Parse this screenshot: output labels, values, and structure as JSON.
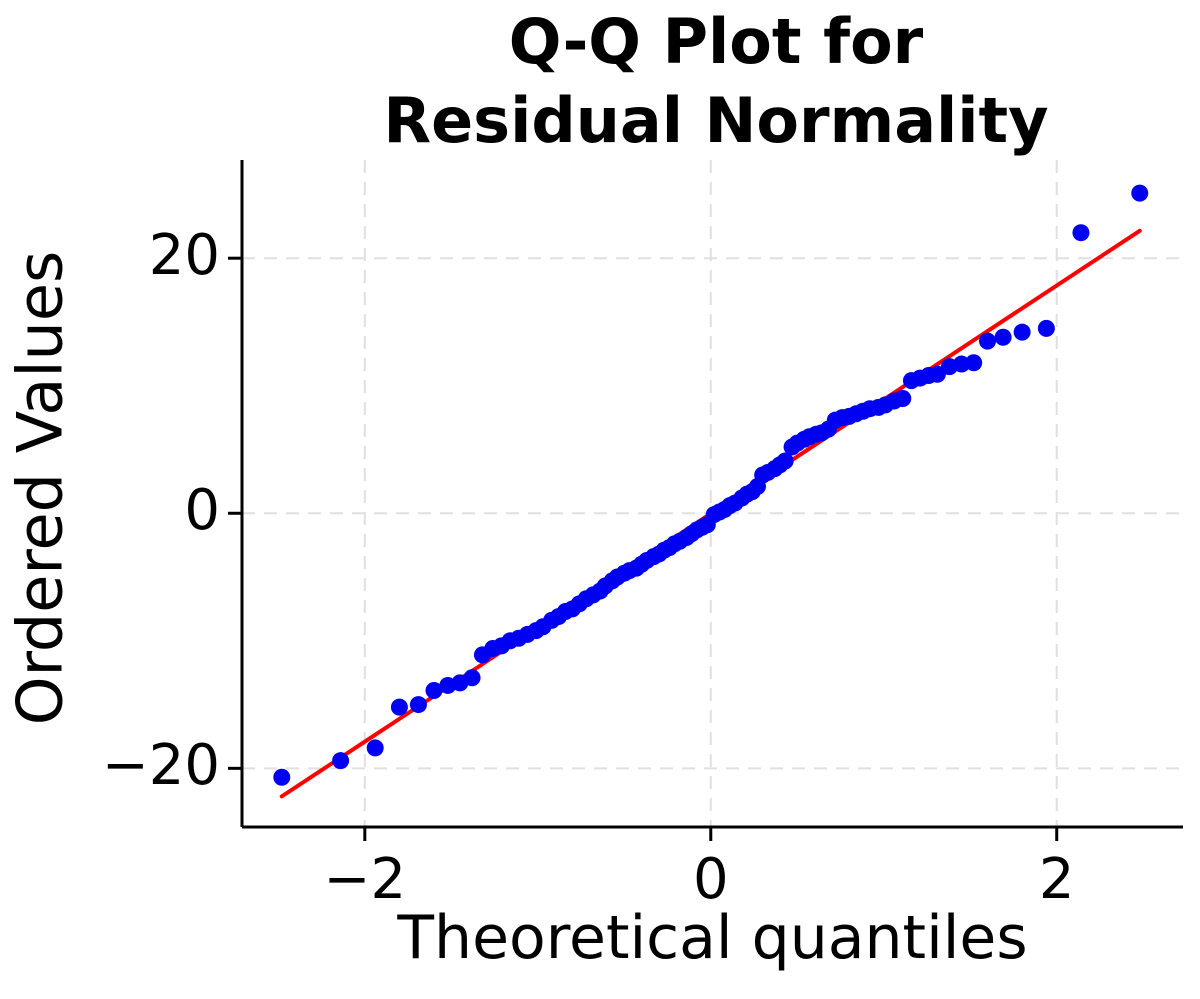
{
  "title": {
    "line1": "Q-Q Plot for",
    "line2": "Residual Normality"
  },
  "colors": {
    "point": "#0000f2",
    "fit_line": "#ff0000",
    "grid": "#e0e0e0",
    "spine": "#000000",
    "text": "#000000",
    "background": "#ffffff"
  },
  "chart_data": {
    "type": "scatter",
    "title": "Q-Q Plot for Residual Normality",
    "xlabel": "Theoretical quantiles",
    "ylabel": "Ordered Values",
    "xlim": [
      -2.71,
      2.73
    ],
    "ylim": [
      -24.6,
      27.7
    ],
    "grid": "dashed light-gray gridlines at each labeled tick; only left and bottom spines drawn",
    "legend": "none",
    "xticks": [
      {
        "value": -2,
        "label": "−2"
      },
      {
        "value": 0,
        "label": "0"
      },
      {
        "value": 2,
        "label": "2"
      }
    ],
    "yticks": [
      {
        "value": 20,
        "label": "20"
      },
      {
        "value": 0,
        "label": "0"
      },
      {
        "value": -20,
        "label": "−20"
      }
    ],
    "series": [
      {
        "name": "sample-quantiles",
        "type": "scatter",
        "marker": "filled-circle",
        "points": [
          [
            -2.48,
            -20.7
          ],
          [
            -2.14,
            -19.4
          ],
          [
            -1.94,
            -18.4
          ],
          [
            -1.8,
            -15.2
          ],
          [
            -1.69,
            -15.0
          ],
          [
            -1.6,
            -13.9
          ],
          [
            -1.52,
            -13.5
          ],
          [
            -1.45,
            -13.3
          ],
          [
            -1.38,
            -12.9
          ],
          [
            -1.32,
            -11.1
          ],
          [
            -1.26,
            -10.6
          ],
          [
            -1.21,
            -10.4
          ],
          [
            -1.16,
            -10.0
          ],
          [
            -1.11,
            -9.8
          ],
          [
            -1.06,
            -9.5
          ],
          [
            -1.01,
            -9.2
          ],
          [
            -0.97,
            -8.9
          ],
          [
            -0.92,
            -8.4
          ],
          [
            -0.88,
            -8.1
          ],
          [
            -0.84,
            -7.7
          ],
          [
            -0.8,
            -7.5
          ],
          [
            -0.76,
            -7.1
          ],
          [
            -0.72,
            -6.7
          ],
          [
            -0.68,
            -6.4
          ],
          [
            -0.64,
            -6.1
          ],
          [
            -0.61,
            -5.7
          ],
          [
            -0.57,
            -5.3
          ],
          [
            -0.54,
            -5.0
          ],
          [
            -0.5,
            -4.7
          ],
          [
            -0.47,
            -4.5
          ],
          [
            -0.43,
            -4.3
          ],
          [
            -0.4,
            -4.0
          ],
          [
            -0.37,
            -3.7
          ],
          [
            -0.33,
            -3.4
          ],
          [
            -0.3,
            -3.2
          ],
          [
            -0.27,
            -2.9
          ],
          [
            -0.24,
            -2.7
          ],
          [
            -0.21,
            -2.4
          ],
          [
            -0.18,
            -2.2
          ],
          [
            -0.14,
            -1.9
          ],
          [
            -0.11,
            -1.6
          ],
          [
            -0.08,
            -1.3
          ],
          [
            -0.05,
            -1.1
          ],
          [
            -0.02,
            -0.9
          ],
          [
            0.02,
            -0.1
          ],
          [
            0.05,
            0.1
          ],
          [
            0.08,
            0.3
          ],
          [
            0.11,
            0.6
          ],
          [
            0.14,
            0.8
          ],
          [
            0.18,
            1.2
          ],
          [
            0.21,
            1.5
          ],
          [
            0.24,
            1.7
          ],
          [
            0.27,
            2.1
          ],
          [
            0.3,
            3.0
          ],
          [
            0.33,
            3.2
          ],
          [
            0.37,
            3.5
          ],
          [
            0.4,
            3.8
          ],
          [
            0.43,
            4.1
          ],
          [
            0.47,
            5.2
          ],
          [
            0.5,
            5.5
          ],
          [
            0.54,
            5.8
          ],
          [
            0.57,
            6.0
          ],
          [
            0.61,
            6.2
          ],
          [
            0.64,
            6.3
          ],
          [
            0.68,
            6.6
          ],
          [
            0.72,
            7.3
          ],
          [
            0.76,
            7.5
          ],
          [
            0.8,
            7.6
          ],
          [
            0.84,
            7.8
          ],
          [
            0.88,
            8.0
          ],
          [
            0.92,
            8.2
          ],
          [
            0.97,
            8.3
          ],
          [
            1.01,
            8.5
          ],
          [
            1.06,
            8.8
          ],
          [
            1.11,
            9.0
          ],
          [
            1.16,
            10.4
          ],
          [
            1.21,
            10.6
          ],
          [
            1.26,
            10.8
          ],
          [
            1.31,
            10.9
          ],
          [
            1.38,
            11.5
          ],
          [
            1.45,
            11.7
          ],
          [
            1.52,
            11.8
          ],
          [
            1.6,
            13.5
          ],
          [
            1.69,
            13.8
          ],
          [
            1.8,
            14.2
          ],
          [
            1.94,
            14.5
          ],
          [
            2.14,
            22.0
          ],
          [
            2.48,
            25.1
          ]
        ]
      },
      {
        "name": "fit-line",
        "type": "line",
        "points": [
          [
            -2.48,
            -22.2
          ],
          [
            2.48,
            22.15
          ]
        ]
      }
    ]
  }
}
